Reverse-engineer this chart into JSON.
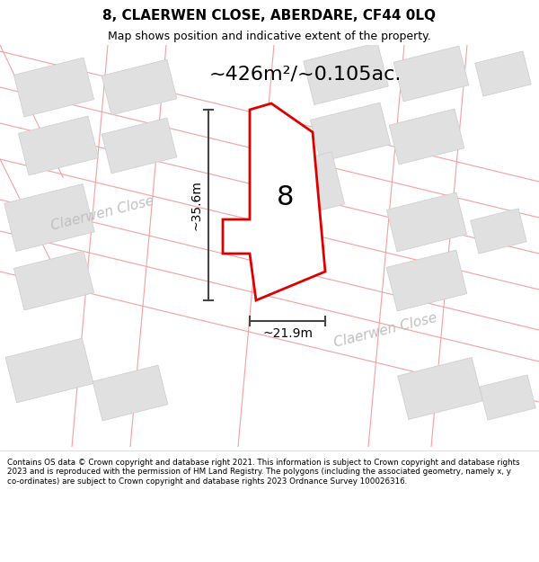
{
  "title": "8, CLAERWEN CLOSE, ABERDARE, CF44 0LQ",
  "subtitle": "Map shows position and indicative extent of the property.",
  "area_label": "~426m²/~0.105ac.",
  "width_label": "~21.9m",
  "height_label": "~35.6m",
  "property_number": "8",
  "street_label": "Claerwen Close",
  "bg_color": "#f7f7f7",
  "building_fill": "#e0e0e0",
  "building_edge": "#cccccc",
  "property_fill": "#ffffff",
  "property_edge": "#dd0000",
  "road_line_color": "#f5a0a0",
  "dim_color": "#444444",
  "street_color": "#c0c0c0",
  "title_fontsize": 11,
  "subtitle_fontsize": 9,
  "area_fontsize": 16,
  "num_fontsize": 22,
  "dim_fontsize": 10,
  "street_fontsize": 11,
  "copyright_text": "Contains OS data © Crown copyright and database right 2021. This information is subject to Crown copyright and database rights 2023 and is reproduced with the permission of HM Land Registry. The polygons (including the associated geometry, namely x, y co-ordinates) are subject to Crown copyright and database rights 2023 Ordnance Survey 100026316."
}
